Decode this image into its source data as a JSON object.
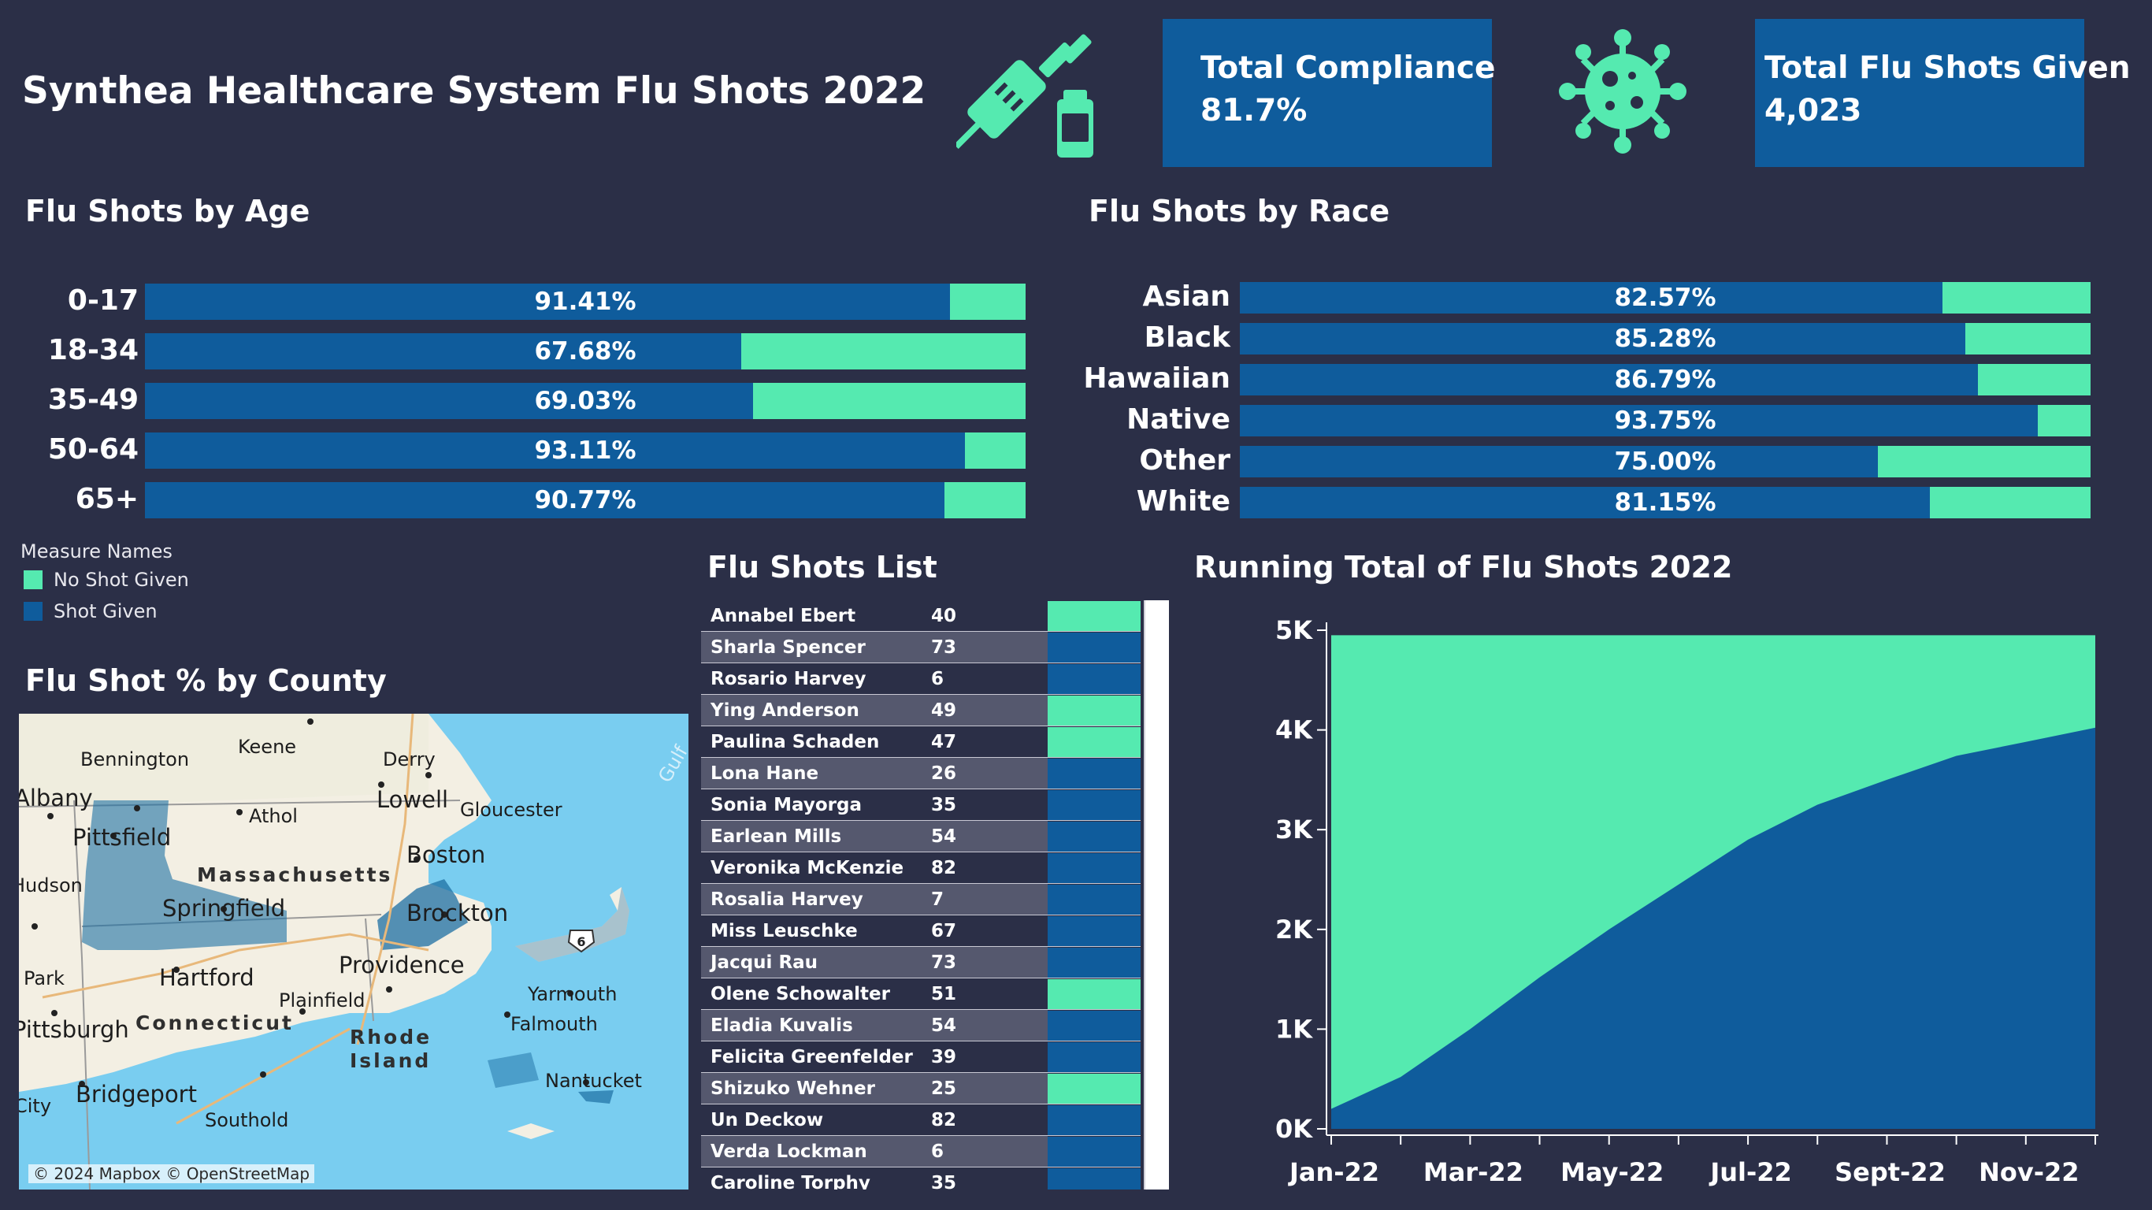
{
  "title": "Synthea Healthcare System Flu Shots 2022",
  "kpis": {
    "compliance": {
      "label": "Total Compliance",
      "value": "81.7%"
    },
    "total_shots": {
      "label": "Total Flu Shots Given",
      "value": "4,023"
    }
  },
  "icons": {
    "syringe": "syringe-icon",
    "virus": "virus-icon"
  },
  "colors": {
    "background": "#2b2f47",
    "shot_given": "#0f5c9c",
    "no_shot_given": "#55eab0"
  },
  "sections": {
    "age": "Flu Shots by Age",
    "race": "Flu Shots by Race",
    "list": "Flu Shots List",
    "running": "Running Total of Flu Shots 2022",
    "county": "Flu Shot % by County"
  },
  "legend": {
    "title": "Measure Names",
    "items": [
      {
        "label": "No Shot Given",
        "color": "#55eab0"
      },
      {
        "label": "Shot Given",
        "color": "#0f5c9c"
      }
    ]
  },
  "chart_data": [
    {
      "type": "bar",
      "title": "Flu Shots by Age",
      "categories": [
        "0-17",
        "18-34",
        "35-49",
        "50-64",
        "65+"
      ],
      "series": [
        {
          "name": "Shot Given",
          "values": [
            91.41,
            67.68,
            69.03,
            93.11,
            90.77
          ]
        },
        {
          "name": "No Shot Given",
          "values": [
            8.59,
            32.32,
            30.97,
            6.89,
            9.23
          ]
        }
      ],
      "labels": [
        "91.41%",
        "67.68%",
        "69.03%",
        "93.11%",
        "90.77%"
      ]
    },
    {
      "type": "bar",
      "title": "Flu Shots by Race",
      "categories": [
        "Asian",
        "Black",
        "Hawaiian",
        "Native",
        "Other",
        "White"
      ],
      "series": [
        {
          "name": "Shot Given",
          "values": [
            82.57,
            85.28,
            86.79,
            93.75,
            75.0,
            81.15
          ]
        },
        {
          "name": "No Shot Given",
          "values": [
            17.43,
            14.72,
            13.21,
            6.25,
            25.0,
            18.85
          ]
        }
      ],
      "labels": [
        "82.57%",
        "85.28%",
        "86.79%",
        "93.75%",
        "75.00%",
        "81.15%"
      ]
    },
    {
      "type": "area",
      "title": "Running Total of Flu Shots 2022",
      "x": [
        "Jan-22",
        "Feb-22",
        "Mar-22",
        "Apr-22",
        "May-22",
        "Jun-22",
        "Jul-22",
        "Aug-22",
        "Sep-22",
        "Oct-22",
        "Nov-22",
        "Dec-22"
      ],
      "x_tick_labels": [
        "Jan-22",
        "Mar-22",
        "May-22",
        "Jul-22",
        "Sept-22",
        "Nov-22"
      ],
      "series": [
        {
          "name": "Shot Given",
          "values": [
            200,
            520,
            1000,
            1520,
            2000,
            2450,
            2900,
            3250,
            3500,
            3740,
            3880,
            4023
          ]
        },
        {
          "name": "No Shot Given",
          "values": [
            4950,
            4950,
            4950,
            4950,
            4950,
            4950,
            4950,
            4950,
            4950,
            4950,
            4950,
            4950
          ]
        }
      ],
      "ylim": [
        0,
        5000
      ],
      "y_ticks": [
        "0K",
        "1K",
        "2K",
        "3K",
        "4K",
        "5K"
      ]
    },
    {
      "type": "table",
      "title": "Flu Shots List",
      "rows": [
        {
          "name": "Annabel Ebert",
          "age": "40",
          "shot": false
        },
        {
          "name": "Sharla Spencer",
          "age": "73",
          "shot": true
        },
        {
          "name": "Rosario Harvey",
          "age": "6",
          "shot": true
        },
        {
          "name": "Ying Anderson",
          "age": "49",
          "shot": false
        },
        {
          "name": "Paulina Schaden",
          "age": "47",
          "shot": false
        },
        {
          "name": "Lona Hane",
          "age": "26",
          "shot": true
        },
        {
          "name": "Sonia Mayorga",
          "age": "35",
          "shot": true
        },
        {
          "name": "Earlean Mills",
          "age": "54",
          "shot": true
        },
        {
          "name": "Veronika McKenzie",
          "age": "82",
          "shot": true
        },
        {
          "name": "Rosalia Harvey",
          "age": "7",
          "shot": true
        },
        {
          "name": "Miss Leuschke",
          "age": "67",
          "shot": true
        },
        {
          "name": "Jacqui Rau",
          "age": "73",
          "shot": true
        },
        {
          "name": "Olene Schowalter",
          "age": "51",
          "shot": false
        },
        {
          "name": "Eladia Kuvalis",
          "age": "54",
          "shot": true
        },
        {
          "name": "Felicita Greenfelder",
          "age": "39",
          "shot": true
        },
        {
          "name": "Shizuko Wehner",
          "age": "25",
          "shot": false
        },
        {
          "name": "Un Deckow",
          "age": "82",
          "shot": true
        },
        {
          "name": "Verda Lockman",
          "age": "6",
          "shot": true
        },
        {
          "name": "Caroline Torphy",
          "age": "35",
          "shot": true
        }
      ]
    }
  ],
  "map": {
    "labels": [
      "Bennington",
      "Keene",
      "Derry",
      "Albany",
      "Lowell",
      "Gloucester",
      "Athol",
      "Pittsfield",
      "Massachusetts",
      "Boston",
      "Hudson",
      "Springfield",
      "Brockton",
      "Park",
      "Hartford",
      "Providence",
      "Yarmouth",
      "Plainfield",
      "Pittsburgh",
      "Connecticut",
      "Rhode Island",
      "Falmouth",
      "Nantucket",
      "City",
      "Bridgeport",
      "Southold",
      "Gulf"
    ],
    "route_shield": "6",
    "credit": "© 2024 Mapbox © OpenStreetMap"
  }
}
